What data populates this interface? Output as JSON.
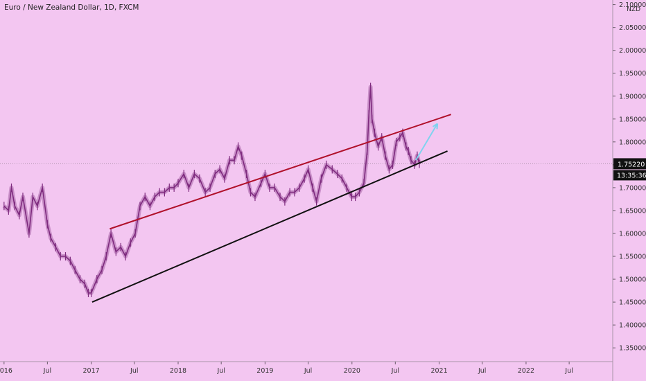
{
  "header": {
    "title": "Euro / New Zealand Dollar, 1D, FXCM",
    "currency": "NZD"
  },
  "price_axis": {
    "ticks": [
      "2.10000",
      "2.05000",
      "2.00000",
      "1.95000",
      "1.90000",
      "1.85000",
      "1.80000",
      "1.75000",
      "1.70000",
      "1.65000",
      "1.60000",
      "1.55000",
      "1.50000",
      "1.45000",
      "1.40000",
      "1.35000"
    ],
    "current_price_label": "1.75220",
    "countdown_label": "13:35:36"
  },
  "time_axis": {
    "ticks": [
      "2016",
      "Jul",
      "2017",
      "Jul",
      "2018",
      "Jul",
      "2019",
      "Jul",
      "2020",
      "Jul",
      "2021",
      "Jul",
      "2022",
      "Jul"
    ]
  },
  "colors": {
    "background": "#f3c6f1",
    "candles": "#7e2a7e",
    "resistance_line": "#b0102a",
    "support_line": "#111111",
    "projection_arrow": "#7fd3ef",
    "price_tag": "#111111"
  },
  "chart_data": {
    "type": "line",
    "title": "Euro / New Zealand Dollar, 1D, FXCM",
    "xlabel": "",
    "ylabel": "",
    "xlim": [
      "2015-12-15",
      "2022-12-31"
    ],
    "ylim": [
      1.32,
      2.11
    ],
    "grid": false,
    "series": [
      {
        "name": "",
        "x": [
          "2016-01-01",
          "2016-01-20",
          "2016-02-01",
          "2016-02-15",
          "2016-03-05",
          "2016-03-20",
          "2016-04-15",
          "2016-05-01",
          "2016-05-20",
          "2016-06-10",
          "2016-07-01",
          "2016-07-15",
          "2016-08-05",
          "2016-08-25",
          "2016-09-15",
          "2016-10-05",
          "2016-10-25",
          "2016-11-15",
          "2016-12-05",
          "2016-12-20",
          "2017-01-01",
          "2017-01-25",
          "2017-02-15",
          "2017-03-05",
          "2017-03-25",
          "2017-04-15",
          "2017-05-05",
          "2017-05-25",
          "2017-06-15",
          "2017-07-05",
          "2017-07-25",
          "2017-08-15",
          "2017-09-05",
          "2017-09-25",
          "2017-10-15",
          "2017-11-05",
          "2017-11-25",
          "2017-12-15",
          "2018-01-01",
          "2018-01-25",
          "2018-02-15",
          "2018-03-10",
          "2018-04-01",
          "2018-04-25",
          "2018-05-15",
          "2018-06-05",
          "2018-06-25",
          "2018-07-15",
          "2018-08-05",
          "2018-08-25",
          "2018-09-10",
          "2018-09-25",
          "2018-10-15",
          "2018-11-01",
          "2018-11-20",
          "2018-12-15",
          "2019-01-01",
          "2019-01-20",
          "2019-02-10",
          "2019-03-05",
          "2019-03-25",
          "2019-04-15",
          "2019-05-05",
          "2019-05-25",
          "2019-06-15",
          "2019-07-01",
          "2019-07-20",
          "2019-08-05",
          "2019-08-25",
          "2019-09-15",
          "2019-10-10",
          "2019-11-01",
          "2019-11-20",
          "2019-12-10",
          "2019-12-31",
          "2020-01-15",
          "2020-02-01",
          "2020-02-20",
          "2020-03-05",
          "2020-03-12",
          "2020-03-19",
          "2020-03-25",
          "2020-04-05",
          "2020-04-20",
          "2020-05-05",
          "2020-05-20",
          "2020-06-05",
          "2020-06-20",
          "2020-07-05",
          "2020-07-20",
          "2020-08-01",
          "2020-08-15",
          "2020-08-25",
          "2020-09-05",
          "2020-09-20",
          "2020-10-01",
          "2020-10-10"
        ],
        "values": [
          1.66,
          1.65,
          1.7,
          1.66,
          1.64,
          1.68,
          1.6,
          1.68,
          1.66,
          1.7,
          1.62,
          1.59,
          1.57,
          1.55,
          1.55,
          1.54,
          1.52,
          1.5,
          1.49,
          1.47,
          1.47,
          1.5,
          1.52,
          1.55,
          1.6,
          1.56,
          1.57,
          1.55,
          1.58,
          1.6,
          1.66,
          1.68,
          1.66,
          1.68,
          1.69,
          1.69,
          1.7,
          1.7,
          1.71,
          1.73,
          1.7,
          1.73,
          1.72,
          1.69,
          1.7,
          1.73,
          1.74,
          1.72,
          1.76,
          1.76,
          1.79,
          1.77,
          1.73,
          1.69,
          1.68,
          1.71,
          1.73,
          1.7,
          1.7,
          1.68,
          1.67,
          1.69,
          1.69,
          1.7,
          1.72,
          1.74,
          1.7,
          1.67,
          1.72,
          1.75,
          1.74,
          1.73,
          1.72,
          1.7,
          1.68,
          1.68,
          1.69,
          1.71,
          1.78,
          1.86,
          1.92,
          1.85,
          1.82,
          1.79,
          1.81,
          1.77,
          1.74,
          1.75,
          1.8,
          1.81,
          1.82,
          1.79,
          1.78,
          1.76,
          1.75,
          1.77,
          1.752
        ]
      }
    ],
    "annotations": {
      "resistance_line": {
        "from": [
          "2017-03-20",
          1.61
        ],
        "to": [
          "2021-02-20",
          1.86
        ]
      },
      "support_line": {
        "from": [
          "2017-01-05",
          1.45
        ],
        "to": [
          "2021-02-05",
          1.78
        ]
      },
      "projection_arrow": {
        "from": [
          "2020-09-25",
          1.76
        ],
        "to": [
          "2020-12-25",
          1.84
        ]
      },
      "current_price_line": 1.7522
    }
  }
}
